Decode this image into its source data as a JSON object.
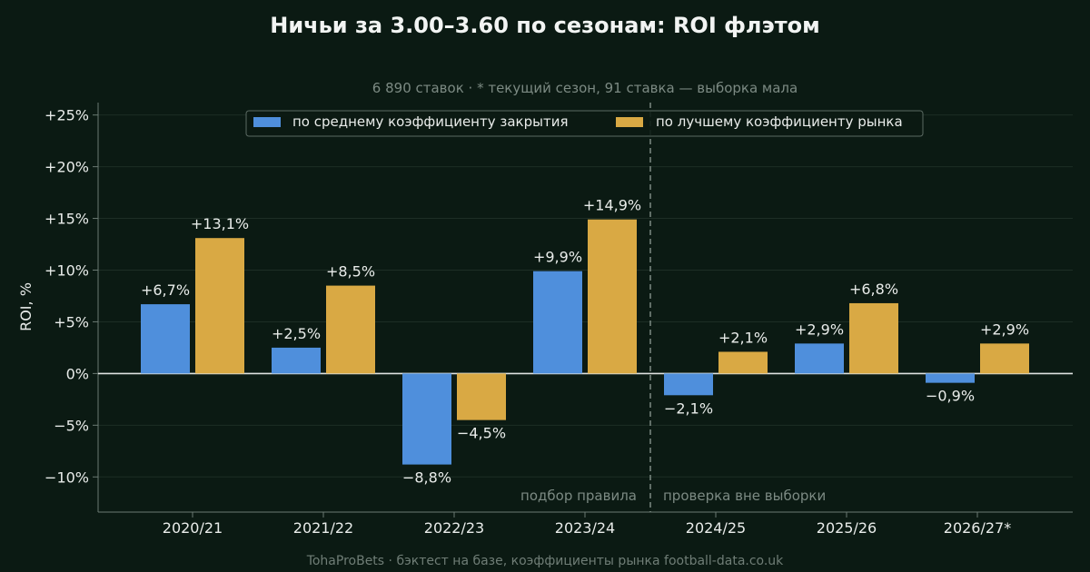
{
  "colors": {
    "background": "#0b1a13",
    "closing": "#4f8fdc",
    "best": "#d9a944",
    "text": "#e9ecea",
    "muted": "#7c8a83",
    "grid": "#1d2e25",
    "axis": "#6b7a73",
    "divider": "#7c8a83"
  },
  "footer": "TohaProBets · бэктест на базе, коэффициенты рынка football-data.co.uk",
  "chart_data": {
    "type": "bar",
    "title": "Ничьи за 3.00–3.60 по сезонам: ROI флэтом",
    "subtitle": "6 890 ставок · * текущий сезон, 91 ставка — выборка мала",
    "ylabel": "ROI, %",
    "xlabel": "",
    "ylim": [
      -13.4,
      26.2
    ],
    "yticks": [
      -10,
      -5,
      0,
      5,
      10,
      15,
      20,
      25
    ],
    "ytick_labels": [
      "−10%",
      "−5%",
      "0%",
      "+5%",
      "+10%",
      "+15%",
      "+20%",
      "+25%"
    ],
    "grid": true,
    "legend_position": "top-center",
    "categories": [
      "2020/21",
      "2021/22",
      "2022/23",
      "2023/24",
      "2024/25",
      "2025/26",
      "2026/27*"
    ],
    "series": [
      {
        "name": "по среднему коэффициенту закрытия",
        "color": "#4f8fdc",
        "values": [
          6.7,
          2.5,
          -8.8,
          9.9,
          -2.1,
          2.9,
          -0.9
        ],
        "labels": [
          "+6,7%",
          "+2,5%",
          "−8,8%",
          "+9,9%",
          "−2,1%",
          "+2,9%",
          "−0,9%"
        ]
      },
      {
        "name": "по лучшему коэффициенту рынка",
        "color": "#d9a944",
        "values": [
          13.1,
          8.5,
          -4.5,
          14.9,
          2.1,
          6.8,
          2.9
        ],
        "labels": [
          "+13,1%",
          "+8,5%",
          "−4,5%",
          "+14,9%",
          "+2,1%",
          "+6,8%",
          "+2,9%"
        ]
      }
    ],
    "annotations": {
      "in_sample": "подбор правила",
      "out_of_sample": "проверка вне выборки"
    },
    "split_after_category": "2023/24"
  }
}
